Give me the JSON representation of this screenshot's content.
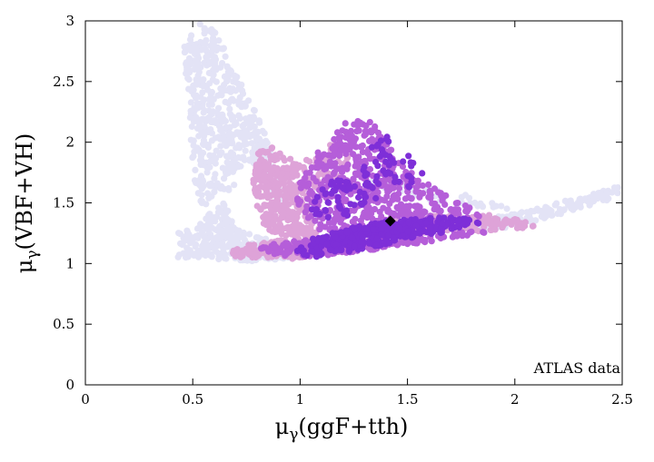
{
  "chart_data": {
    "type": "scatter",
    "title": "",
    "xlabel_main": "μ",
    "xlabel_sub": "γ",
    "xlabel_rest": "(ggF+tth)",
    "ylabel_main": "μ",
    "ylabel_sub": "γ",
    "ylabel_rest": "(VBF+VH)",
    "xlim": [
      0,
      2.5
    ],
    "ylim": [
      0,
      3
    ],
    "x_ticks": [
      "0",
      "0.5",
      "1",
      "1.5",
      "2",
      "2.5"
    ],
    "y_ticks": [
      "0",
      "0.5",
      "1",
      "1.5",
      "2",
      "2.5",
      "3"
    ],
    "grid": false,
    "annotation": "ATLAS data",
    "best_fit": {
      "x": 1.42,
      "y": 1.35,
      "marker": "diamond",
      "color": "#000000"
    },
    "series": [
      {
        "color": "#e3e3f6",
        "regions": [
          {
            "polygon": [
              [
                0.45,
                2.8
              ],
              [
                0.52,
                2.98
              ],
              [
                0.6,
                2.95
              ],
              [
                0.72,
                2.5
              ],
              [
                0.82,
                2.15
              ],
              [
                0.9,
                1.75
              ],
              [
                0.95,
                1.5
              ],
              [
                0.93,
                1.45
              ],
              [
                0.85,
                1.6
              ],
              [
                0.75,
                1.85
              ],
              [
                0.68,
                1.6
              ],
              [
                0.62,
                1.55
              ],
              [
                0.55,
                1.45
              ],
              [
                0.5,
                1.7
              ],
              [
                0.48,
                2.3
              ]
            ],
            "count": 520
          },
          {
            "polygon": [
              [
                0.43,
                1.05
              ],
              [
                0.43,
                1.25
              ],
              [
                0.52,
                1.3
              ],
              [
                0.6,
                1.45
              ],
              [
                0.62,
                1.55
              ],
              [
                0.65,
                1.5
              ],
              [
                0.7,
                1.3
              ],
              [
                0.85,
                1.2
              ],
              [
                1.0,
                1.05
              ],
              [
                0.8,
                1.02
              ],
              [
                0.6,
                1.03
              ]
            ],
            "count": 260
          },
          {
            "polygon": [
              [
                1.8,
                1.35
              ],
              [
                2.1,
                1.45
              ],
              [
                2.4,
                1.6
              ],
              [
                2.48,
                1.65
              ],
              [
                2.48,
                1.55
              ],
              [
                2.3,
                1.45
              ],
              [
                2.0,
                1.3
              ],
              [
                1.8,
                1.28
              ]
            ],
            "count": 160
          },
          {
            "polygon": [
              [
                1.3,
                1.72
              ],
              [
                1.6,
                1.65
              ],
              [
                1.9,
                1.5
              ],
              [
                2.0,
                1.45
              ],
              [
                1.8,
                1.45
              ],
              [
                1.5,
                1.55
              ],
              [
                1.3,
                1.6
              ]
            ],
            "count": 50
          }
        ]
      },
      {
        "color": "#dea3d8",
        "regions": [
          {
            "polygon": [
              [
                0.8,
                1.9
              ],
              [
                0.85,
                1.98
              ],
              [
                0.92,
                1.9
              ],
              [
                0.98,
                1.85
              ],
              [
                1.0,
                1.55
              ],
              [
                1.05,
                1.4
              ],
              [
                1.1,
                1.3
              ],
              [
                1.05,
                1.2
              ],
              [
                0.95,
                1.2
              ],
              [
                0.85,
                1.25
              ],
              [
                0.8,
                1.45
              ],
              [
                0.78,
                1.7
              ]
            ],
            "count": 320
          },
          {
            "polygon": [
              [
                0.68,
                1.1
              ],
              [
                0.75,
                1.15
              ],
              [
                0.9,
                1.2
              ],
              [
                1.05,
                1.15
              ],
              [
                1.1,
                1.1
              ],
              [
                1.0,
                1.03
              ],
              [
                0.85,
                1.05
              ],
              [
                0.7,
                1.05
              ]
            ],
            "count": 140
          },
          {
            "polygon": [
              [
                1.4,
                1.35
              ],
              [
                1.65,
                1.4
              ],
              [
                1.9,
                1.4
              ],
              [
                2.05,
                1.35
              ],
              [
                2.1,
                1.3
              ],
              [
                1.9,
                1.27
              ],
              [
                1.6,
                1.25
              ],
              [
                1.4,
                1.28
              ]
            ],
            "count": 200
          },
          {
            "polygon": [
              [
                0.95,
                1.75
              ],
              [
                1.1,
                1.95
              ],
              [
                1.25,
                2.05
              ],
              [
                1.2,
                1.7
              ],
              [
                1.05,
                1.55
              ],
              [
                0.98,
                1.5
              ]
            ],
            "count": 70
          }
        ]
      },
      {
        "color": "#b55ed9",
        "regions": [
          {
            "polygon": [
              [
                1.0,
                1.7
              ],
              [
                1.05,
                1.85
              ],
              [
                1.12,
                2.0
              ],
              [
                1.2,
                2.15
              ],
              [
                1.3,
                2.2
              ],
              [
                1.38,
                2.1
              ],
              [
                1.45,
                1.85
              ],
              [
                1.6,
                1.65
              ],
              [
                1.75,
                1.5
              ],
              [
                1.85,
                1.4
              ],
              [
                1.7,
                1.3
              ],
              [
                1.5,
                1.28
              ],
              [
                1.3,
                1.25
              ],
              [
                1.15,
                1.25
              ],
              [
                1.05,
                1.3
              ],
              [
                0.98,
                1.45
              ]
            ],
            "count": 520
          },
          {
            "polygon": [
              [
                0.8,
                1.12
              ],
              [
                0.9,
                1.18
              ],
              [
                1.1,
                1.2
              ],
              [
                1.3,
                1.2
              ],
              [
                1.6,
                1.22
              ],
              [
                1.85,
                1.28
              ],
              [
                1.95,
                1.28
              ],
              [
                1.6,
                1.18
              ],
              [
                1.3,
                1.1
              ],
              [
                1.05,
                1.05
              ],
              [
                0.9,
                1.07
              ]
            ],
            "count": 240
          }
        ]
      },
      {
        "color": "#7e2fd8",
        "regions": [
          {
            "polygon": [
              [
                0.98,
                1.1
              ],
              [
                1.05,
                1.2
              ],
              [
                1.2,
                1.28
              ],
              [
                1.4,
                1.35
              ],
              [
                1.6,
                1.38
              ],
              [
                1.8,
                1.38
              ],
              [
                1.85,
                1.33
              ],
              [
                1.65,
                1.25
              ],
              [
                1.45,
                1.18
              ],
              [
                1.25,
                1.1
              ],
              [
                1.05,
                1.05
              ]
            ],
            "count": 400
          },
          {
            "polygon": [
              [
                1.05,
                1.45
              ],
              [
                1.1,
                1.62
              ],
              [
                1.18,
                1.75
              ],
              [
                1.3,
                1.8
              ],
              [
                1.38,
                1.7
              ],
              [
                1.35,
                1.5
              ],
              [
                1.2,
                1.38
              ],
              [
                1.08,
                1.38
              ]
            ],
            "count": 70
          },
          {
            "polygon": [
              [
                1.3,
                1.9
              ],
              [
                1.38,
                2.12
              ],
              [
                1.45,
                2.0
              ],
              [
                1.6,
                1.75
              ],
              [
                1.52,
                1.6
              ],
              [
                1.4,
                1.7
              ]
            ],
            "count": 40
          }
        ]
      }
    ]
  }
}
